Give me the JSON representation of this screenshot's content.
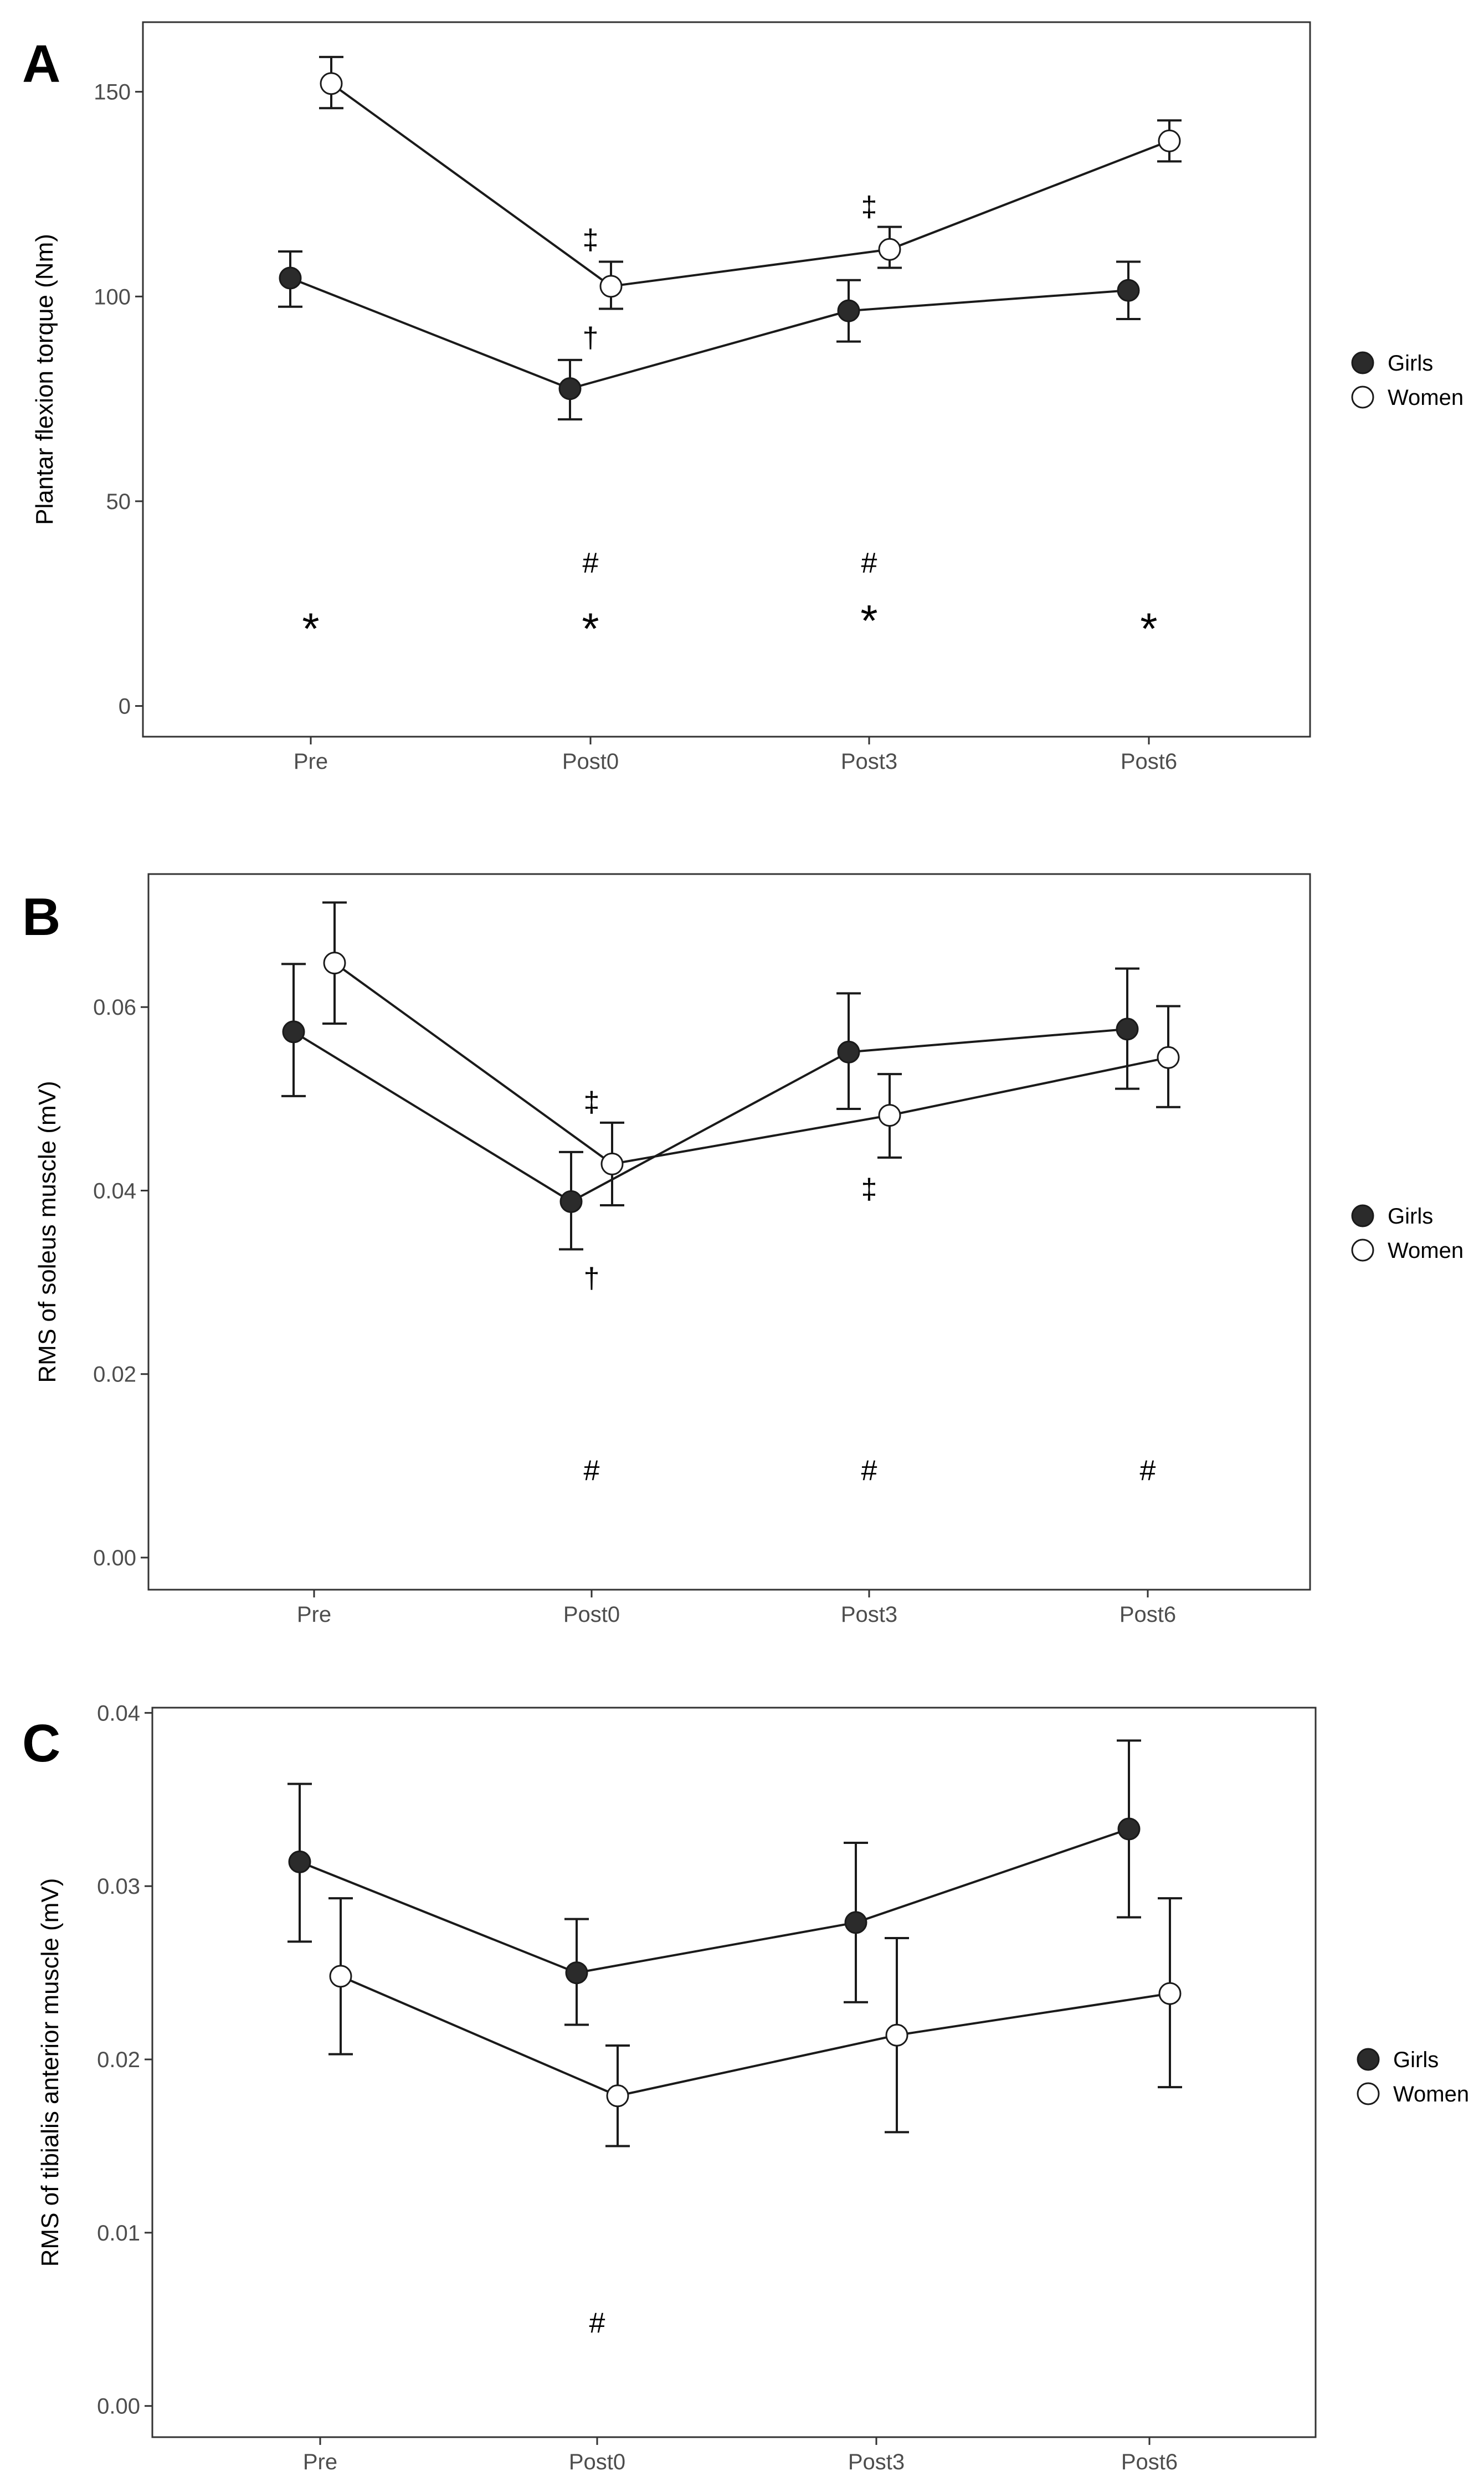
{
  "legend": [
    "Girls",
    "Women"
  ],
  "colors": {
    "girls": "#2b2b2b",
    "women": "#ffffff",
    "axis": "#333333",
    "line": "#1a1a1a"
  },
  "chart_data": [
    {
      "panel": "A",
      "type": "line",
      "title": "",
      "xlabel": "",
      "ylabel": "Plantar flexion torque (Nm)",
      "categories": [
        "Pre",
        "Post0",
        "Post3",
        "Post6"
      ],
      "ylim": [
        -7.5,
        167
      ],
      "yticks": [
        0,
        50,
        100,
        150
      ],
      "ytick_labels": [
        "0",
        "50",
        "100",
        "150"
      ],
      "series": [
        {
          "name": "Girls",
          "values": [
            104.5,
            77.5,
            96.5,
            101.5
          ],
          "err_low": [
            97.5,
            70,
            89,
            94.5
          ],
          "err_high": [
            111,
            84.5,
            104,
            108.5
          ]
        },
        {
          "name": "Women",
          "values": [
            152,
            102.5,
            111.5,
            138
          ],
          "err_low": [
            146,
            97,
            107,
            133
          ],
          "err_high": [
            158.5,
            108.5,
            117,
            143
          ]
        }
      ],
      "annotations": [
        {
          "text": "†",
          "category": "Post0",
          "y": 90
        },
        {
          "text": "‡",
          "category": "Post0",
          "y": 114
        },
        {
          "text": "‡",
          "category": "Post3",
          "y": 122
        },
        {
          "text": "#",
          "category": "Post0",
          "y": 35
        },
        {
          "text": "#",
          "category": "Post3",
          "y": 35
        },
        {
          "text": "*",
          "category": "Pre",
          "y": 20
        },
        {
          "text": "*",
          "category": "Post0",
          "y": 20
        },
        {
          "text": "*",
          "category": "Post3",
          "y": 22
        },
        {
          "text": "*",
          "category": "Post6",
          "y": 20
        }
      ]
    },
    {
      "panel": "B",
      "type": "line",
      "title": "",
      "xlabel": "",
      "ylabel": "RMS of soleus muscle  (mV)",
      "categories": [
        "Pre",
        "Post0",
        "Post3",
        "Post6"
      ],
      "ylim": [
        -0.0035,
        0.0745
      ],
      "yticks": [
        0,
        0.02,
        0.04,
        0.06
      ],
      "ytick_labels": [
        "0.00",
        "0.02",
        "0.04",
        "0.06"
      ],
      "series": [
        {
          "name": "Girls",
          "values": [
            0.0573,
            0.0388,
            0.0551,
            0.0576
          ],
          "err_low": [
            0.0503,
            0.0336,
            0.0489,
            0.0511
          ],
          "err_high": [
            0.0647,
            0.0442,
            0.0615,
            0.0642
          ]
        },
        {
          "name": "Women",
          "values": [
            0.0648,
            0.0429,
            0.0482,
            0.0545
          ],
          "err_low": [
            0.0582,
            0.0384,
            0.0436,
            0.0491
          ],
          "err_high": [
            0.0714,
            0.0474,
            0.0527,
            0.0601
          ]
        }
      ],
      "annotations": [
        {
          "text": "‡",
          "category": "Post0",
          "y": 0.0497
        },
        {
          "text": "†",
          "category": "Post0",
          "y": 0.0305
        },
        {
          "text": "‡",
          "category": "Post3",
          "y": 0.0402
        },
        {
          "text": "#",
          "category": "Post0",
          "y": 0.0095
        },
        {
          "text": "#",
          "category": "Post3",
          "y": 0.0095
        },
        {
          "text": "#",
          "category": "Post6",
          "y": 0.0095
        }
      ]
    },
    {
      "panel": "C",
      "type": "line",
      "title": "",
      "xlabel": "",
      "ylabel": "RMS of tibialis anterior muscle (mV)",
      "categories": [
        "Pre",
        "Post0",
        "Post3",
        "Post6"
      ],
      "ylim": [
        -0.0018,
        0.0403
      ],
      "yticks": [
        0,
        0.01,
        0.02,
        0.03,
        0.04
      ],
      "ytick_labels": [
        "0.00",
        "0.01",
        "0.02",
        "0.03",
        "0.04"
      ],
      "series": [
        {
          "name": "Girls",
          "values": [
            0.0314,
            0.025,
            0.0279,
            0.0333
          ],
          "err_low": [
            0.0268,
            0.022,
            0.0233,
            0.0282
          ],
          "err_high": [
            0.0359,
            0.0281,
            0.0325,
            0.0384
          ]
        },
        {
          "name": "Women",
          "values": [
            0.0248,
            0.0179,
            0.0214,
            0.0238
          ],
          "err_low": [
            0.0203,
            0.015,
            0.0158,
            0.0184
          ],
          "err_high": [
            0.0293,
            0.0208,
            0.027,
            0.0293
          ]
        }
      ],
      "annotations": [
        {
          "text": "#",
          "category": "Post0",
          "y": 0.0048
        }
      ]
    }
  ]
}
